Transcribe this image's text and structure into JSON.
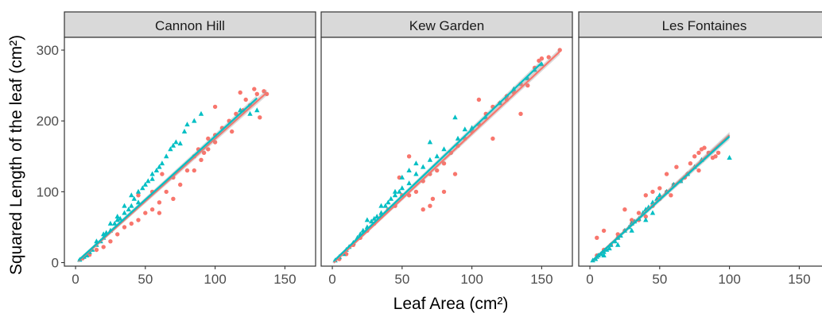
{
  "chart_data": {
    "type": "scatter",
    "title": "",
    "xlabel": "Leaf Area (cm²)",
    "ylabel": "Squared Length of the leaf (cm²)",
    "xlim": [
      -8,
      172
    ],
    "ylim": [
      -5,
      318
    ],
    "x_ticks": [
      0,
      50,
      100,
      150
    ],
    "y_ticks": [
      0,
      100,
      200,
      300
    ],
    "grid": false,
    "legend": "none",
    "colors": {
      "series_a": "#F8766D",
      "series_b": "#00BFC4",
      "strip_fill": "#D9D9D9",
      "panel_border": "#333333"
    },
    "facets": [
      {
        "label": "Cannon Hill",
        "fit_lines": {
          "series_a": {
            "x": [
              2,
              137
            ],
            "y": [
              2,
              240
            ]
          },
          "series_b": {
            "x": [
              2,
              130
            ],
            "y": [
              3,
              232
            ]
          }
        },
        "series_a": [
          [
            5,
            6
          ],
          [
            10,
            11
          ],
          [
            15,
            18
          ],
          [
            20,
            22
          ],
          [
            25,
            30
          ],
          [
            30,
            40
          ],
          [
            35,
            50
          ],
          [
            40,
            55
          ],
          [
            45,
            60
          ],
          [
            50,
            70
          ],
          [
            55,
            75
          ],
          [
            60,
            85
          ],
          [
            65,
            100
          ],
          [
            70,
            120
          ],
          [
            75,
            110
          ],
          [
            80,
            130
          ],
          [
            85,
            150
          ],
          [
            88,
            160
          ],
          [
            92,
            155
          ],
          [
            95,
            175
          ],
          [
            100,
            180
          ],
          [
            105,
            190
          ],
          [
            110,
            200
          ],
          [
            112,
            185
          ],
          [
            115,
            210
          ],
          [
            120,
            215
          ],
          [
            122,
            230
          ],
          [
            125,
            222
          ],
          [
            128,
            245
          ],
          [
            130,
            238
          ],
          [
            132,
            205
          ],
          [
            135,
            242
          ],
          [
            137,
            238
          ],
          [
            100,
            220
          ],
          [
            118,
            240
          ],
          [
            60,
            70
          ],
          [
            62,
            125
          ],
          [
            45,
            95
          ],
          [
            55,
            100
          ],
          [
            70,
            90
          ],
          [
            85,
            130
          ],
          [
            90,
            145
          ],
          [
            95,
            160
          ],
          [
            100,
            170
          ]
        ],
        "series_b": [
          [
            3,
            4
          ],
          [
            6,
            8
          ],
          [
            8,
            10
          ],
          [
            10,
            15
          ],
          [
            12,
            18
          ],
          [
            15,
            25
          ],
          [
            18,
            30
          ],
          [
            20,
            35
          ],
          [
            22,
            42
          ],
          [
            25,
            45
          ],
          [
            28,
            55
          ],
          [
            30,
            60
          ],
          [
            32,
            62
          ],
          [
            35,
            70
          ],
          [
            38,
            75
          ],
          [
            40,
            80
          ],
          [
            42,
            90
          ],
          [
            45,
            100
          ],
          [
            48,
            105
          ],
          [
            50,
            110
          ],
          [
            52,
            115
          ],
          [
            55,
            118
          ],
          [
            58,
            130
          ],
          [
            60,
            135
          ],
          [
            62,
            140
          ],
          [
            65,
            150
          ],
          [
            68,
            160
          ],
          [
            70,
            165
          ],
          [
            72,
            170
          ],
          [
            75,
            168
          ],
          [
            78,
            185
          ],
          [
            80,
            195
          ],
          [
            85,
            200
          ],
          [
            90,
            210
          ],
          [
            125,
            210
          ],
          [
            130,
            215
          ],
          [
            118,
            215
          ],
          [
            20,
            40
          ],
          [
            30,
            65
          ],
          [
            45,
            85
          ],
          [
            35,
            80
          ],
          [
            55,
            125
          ],
          [
            25,
            55
          ],
          [
            15,
            30
          ],
          [
            40,
            95
          ]
        ]
      },
      {
        "label": "Kew Garden",
        "fit_lines": {
          "series_a": {
            "x": [
              1,
              163
            ],
            "y": [
              0,
              298
            ]
          },
          "series_b": {
            "x": [
              1,
              150
            ],
            "y": [
              2,
              282
            ]
          }
        },
        "series_a": [
          [
            5,
            5
          ],
          [
            10,
            12
          ],
          [
            15,
            25
          ],
          [
            20,
            35
          ],
          [
            25,
            45
          ],
          [
            30,
            55
          ],
          [
            35,
            65
          ],
          [
            40,
            75
          ],
          [
            45,
            80
          ],
          [
            50,
            95
          ],
          [
            55,
            95
          ],
          [
            60,
            100
          ],
          [
            65,
            115
          ],
          [
            70,
            125
          ],
          [
            75,
            130
          ],
          [
            80,
            140
          ],
          [
            85,
            155
          ],
          [
            90,
            165
          ],
          [
            95,
            175
          ],
          [
            100,
            185
          ],
          [
            105,
            195
          ],
          [
            110,
            210
          ],
          [
            115,
            220
          ],
          [
            120,
            225
          ],
          [
            125,
            230
          ],
          [
            130,
            240
          ],
          [
            135,
            252
          ],
          [
            140,
            250
          ],
          [
            145,
            275
          ],
          [
            148,
            285
          ],
          [
            150,
            288
          ],
          [
            155,
            290
          ],
          [
            163,
            300
          ],
          [
            70,
            80
          ],
          [
            72,
            90
          ],
          [
            88,
            125
          ],
          [
            115,
            175
          ],
          [
            135,
            210
          ],
          [
            125,
            235
          ],
          [
            65,
            75
          ],
          [
            55,
            150
          ],
          [
            48,
            120
          ],
          [
            80,
            100
          ],
          [
            105,
            230
          ]
        ],
        "series_b": [
          [
            2,
            3
          ],
          [
            5,
            8
          ],
          [
            8,
            12
          ],
          [
            10,
            18
          ],
          [
            12,
            22
          ],
          [
            15,
            28
          ],
          [
            18,
            35
          ],
          [
            20,
            40
          ],
          [
            22,
            45
          ],
          [
            25,
            50
          ],
          [
            28,
            58
          ],
          [
            30,
            62
          ],
          [
            32,
            65
          ],
          [
            35,
            70
          ],
          [
            38,
            80
          ],
          [
            40,
            85
          ],
          [
            42,
            90
          ],
          [
            45,
            95
          ],
          [
            48,
            100
          ],
          [
            50,
            105
          ],
          [
            55,
            112
          ],
          [
            60,
            125
          ],
          [
            65,
            135
          ],
          [
            70,
            145
          ],
          [
            75,
            150
          ],
          [
            80,
            160
          ],
          [
            90,
            175
          ],
          [
            100,
            190
          ],
          [
            110,
            205
          ],
          [
            120,
            225
          ],
          [
            130,
            245
          ],
          [
            140,
            260
          ],
          [
            150,
            280
          ],
          [
            145,
            272
          ],
          [
            88,
            205
          ],
          [
            70,
            170
          ],
          [
            60,
            140
          ],
          [
            55,
            130
          ],
          [
            50,
            120
          ],
          [
            25,
            60
          ],
          [
            35,
            80
          ],
          [
            45,
            100
          ],
          [
            95,
            188
          ]
        ]
      },
      {
        "label": "Les Fontaines",
        "fit_lines": {
          "series_a": {
            "x": [
              2,
              100
            ],
            "y": [
              3,
              180
            ]
          },
          "series_b": {
            "x": [
              2,
              100
            ],
            "y": [
              3,
              178
            ]
          }
        },
        "series_a": [
          [
            5,
            10
          ],
          [
            10,
            18
          ],
          [
            15,
            25
          ],
          [
            20,
            35
          ],
          [
            25,
            45
          ],
          [
            30,
            55
          ],
          [
            35,
            60
          ],
          [
            40,
            65
          ],
          [
            45,
            80
          ],
          [
            50,
            90
          ],
          [
            55,
            100
          ],
          [
            58,
            95
          ],
          [
            60,
            110
          ],
          [
            65,
            115
          ],
          [
            68,
            120
          ],
          [
            70,
            125
          ],
          [
            72,
            140
          ],
          [
            75,
            150
          ],
          [
            78,
            155
          ],
          [
            80,
            160
          ],
          [
            82,
            162
          ],
          [
            85,
            155
          ],
          [
            88,
            148
          ],
          [
            90,
            150
          ],
          [
            92,
            155
          ],
          [
            55,
            125
          ],
          [
            45,
            100
          ],
          [
            40,
            95
          ],
          [
            30,
            60
          ],
          [
            25,
            75
          ],
          [
            10,
            45
          ],
          [
            5,
            35
          ],
          [
            20,
            40
          ],
          [
            35,
            70
          ],
          [
            50,
            105
          ],
          [
            62,
            135
          ],
          [
            78,
            130
          ]
        ],
        "series_b": [
          [
            2,
            3
          ],
          [
            4,
            5
          ],
          [
            5,
            8
          ],
          [
            6,
            10
          ],
          [
            8,
            12
          ],
          [
            10,
            15
          ],
          [
            12,
            18
          ],
          [
            14,
            20
          ],
          [
            15,
            25
          ],
          [
            18,
            30
          ],
          [
            20,
            35
          ],
          [
            22,
            38
          ],
          [
            25,
            45
          ],
          [
            28,
            50
          ],
          [
            30,
            55
          ],
          [
            32,
            58
          ],
          [
            35,
            62
          ],
          [
            38,
            70
          ],
          [
            40,
            75
          ],
          [
            42,
            78
          ],
          [
            45,
            85
          ],
          [
            48,
            90
          ],
          [
            50,
            95
          ],
          [
            55,
            100
          ],
          [
            60,
            110
          ],
          [
            65,
            115
          ],
          [
            70,
            125
          ],
          [
            75,
            135
          ],
          [
            80,
            145
          ],
          [
            100,
            148
          ],
          [
            20,
            25
          ],
          [
            30,
            45
          ],
          [
            40,
            60
          ],
          [
            10,
            10
          ],
          [
            45,
            70
          ]
        ]
      }
    ]
  }
}
